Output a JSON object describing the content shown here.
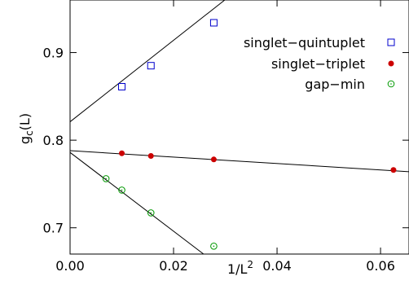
{
  "chart_data": {
    "type": "scatter",
    "title": "",
    "xlabel": "1/L",
    "xlabel_sup": "2",
    "ylabel": "g",
    "ylabel_sub": "c",
    "ylabel_suffix": "(L)",
    "xlim": [
      0,
      0.0655
    ],
    "ylim": [
      0.67,
      0.96
    ],
    "xticks": [
      0.0,
      0.02,
      0.04,
      0.06
    ],
    "xtick_labels": [
      "0.00",
      "0.02",
      "0.04",
      "0.06"
    ],
    "yticks": [
      0.7,
      0.8,
      0.9
    ],
    "ytick_labels": [
      "0.7",
      "0.8",
      "0.9"
    ],
    "grid": false,
    "legend_position": "top-right",
    "series": [
      {
        "name": "singlet−quintuplet",
        "marker": "open-square",
        "color": "#0000cc",
        "x": [
          0.01,
          0.015625,
          0.027778
        ],
        "y": [
          0.861,
          0.885,
          0.934
        ],
        "fit": {
          "x": [
            0,
            0.03
          ],
          "y": [
            0.821,
            0.9605
          ]
        }
      },
      {
        "name": "singlet−triplet",
        "marker": "filled-circle",
        "color": "#cc0000",
        "x": [
          0.01,
          0.015625,
          0.027778,
          0.0625
        ],
        "y": [
          0.785,
          0.782,
          0.778,
          0.766
        ],
        "fit": {
          "x": [
            0,
            0.0655
          ],
          "y": [
            0.788,
            0.764
          ]
        }
      },
      {
        "name": "gap−min",
        "marker": "open-circle-dot",
        "color": "#009900",
        "x": [
          0.006944,
          0.01,
          0.015625,
          0.027778
        ],
        "y": [
          0.756,
          0.743,
          0.717,
          0.679
        ],
        "fit": {
          "x": [
            0,
            0.0258
          ],
          "y": [
            0.786,
            0.67
          ]
        }
      }
    ]
  }
}
